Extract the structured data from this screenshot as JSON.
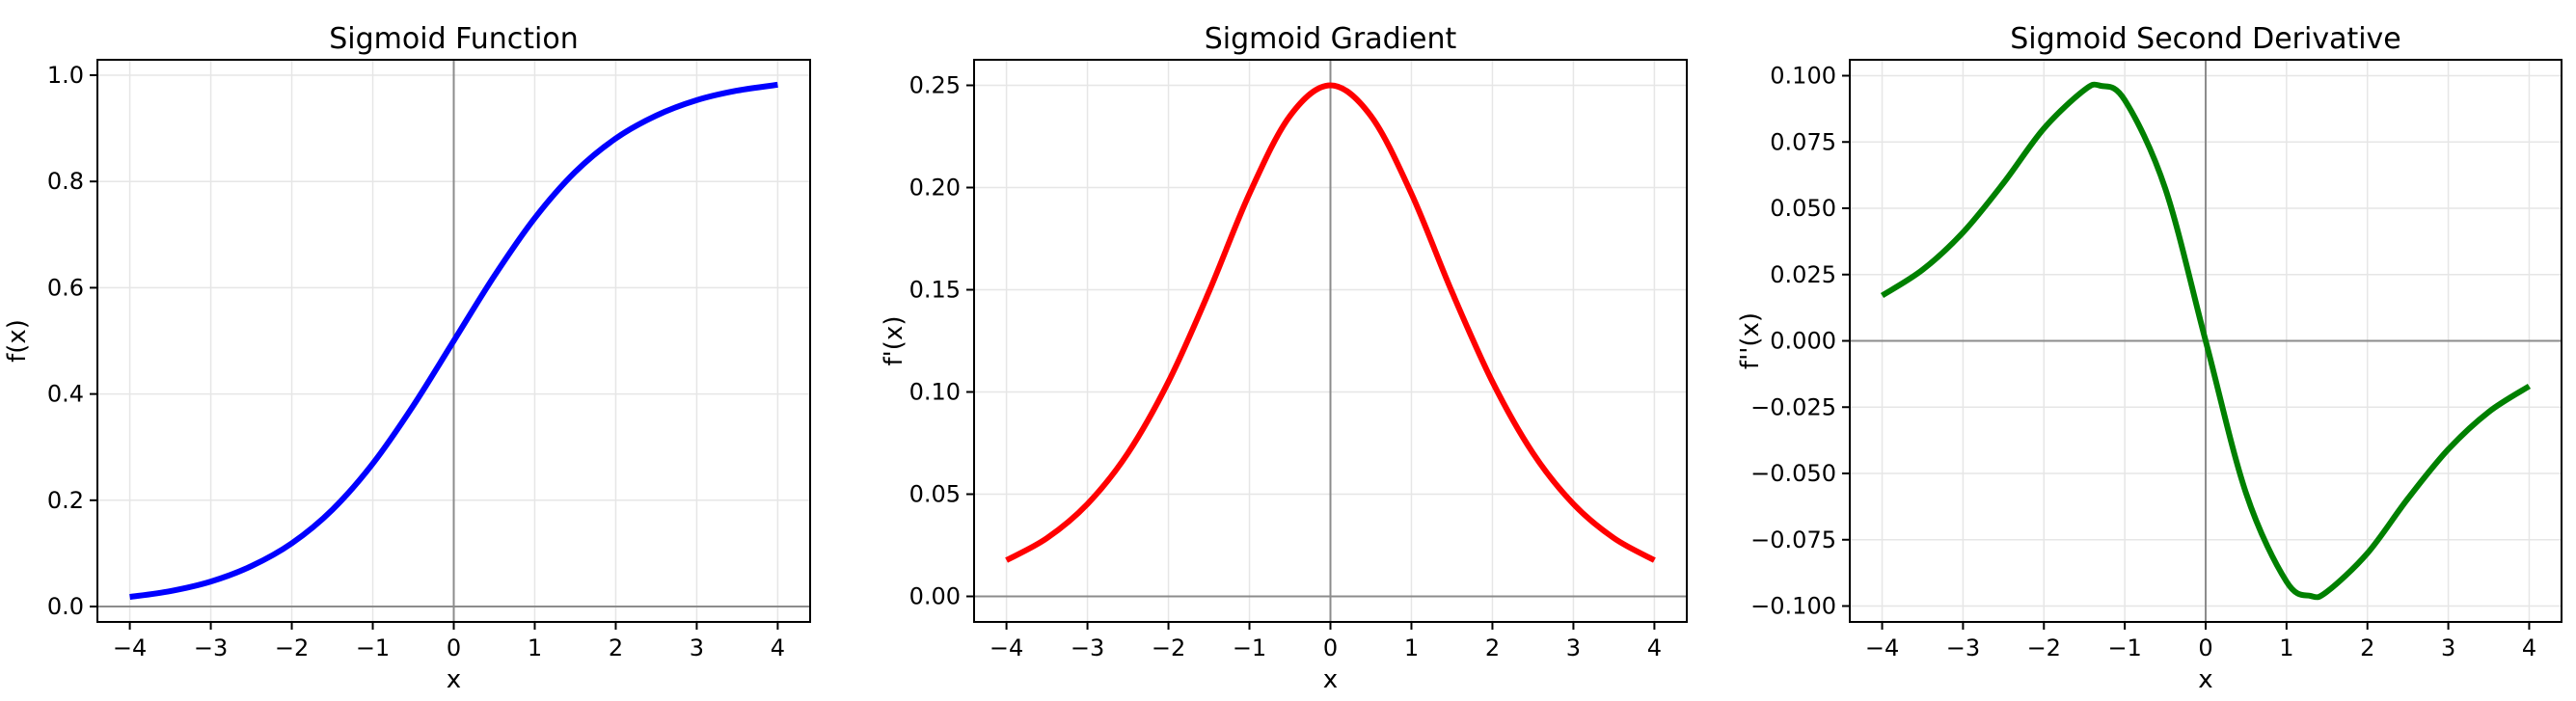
{
  "chart_data": [
    {
      "type": "line",
      "title": "Sigmoid Function",
      "xlabel": "x",
      "ylabel": "f(x)",
      "xlim": [
        -4.4,
        4.4
      ],
      "ylim": [
        -0.029,
        1.029
      ],
      "xticks": [
        -4,
        -3,
        -2,
        -1,
        0,
        1,
        2,
        3,
        4
      ],
      "xtick_labels": [
        "−4",
        "−3",
        "−2",
        "−1",
        "0",
        "1",
        "2",
        "3",
        "4"
      ],
      "yticks": [
        0.0,
        0.2,
        0.4,
        0.6,
        0.8,
        1.0
      ],
      "ytick_labels": [
        "0.0",
        "0.2",
        "0.4",
        "0.6",
        "0.8",
        "1.0"
      ],
      "grid": true,
      "reference_lines": {
        "x": 0,
        "y": 0
      },
      "color": "#0000ff",
      "series": [
        {
          "x": [
            -4,
            -3.5,
            -3,
            -2.5,
            -2,
            -1.5,
            -1,
            -0.5,
            0,
            0.5,
            1,
            1.5,
            2,
            2.5,
            3,
            3.5,
            4
          ],
          "y": [
            0.018,
            0.029,
            0.047,
            0.076,
            0.119,
            0.182,
            0.269,
            0.378,
            0.5,
            0.622,
            0.731,
            0.818,
            0.881,
            0.924,
            0.953,
            0.971,
            0.982
          ]
        }
      ]
    },
    {
      "type": "line",
      "title": "Sigmoid Gradient",
      "xlabel": "x",
      "ylabel": "f'(x)",
      "xlim": [
        -4.4,
        4.4
      ],
      "ylim": [
        -0.0125,
        0.2625
      ],
      "xticks": [
        -4,
        -3,
        -2,
        -1,
        0,
        1,
        2,
        3,
        4
      ],
      "xtick_labels": [
        "−4",
        "−3",
        "−2",
        "−1",
        "0",
        "1",
        "2",
        "3",
        "4"
      ],
      "yticks": [
        0.0,
        0.05,
        0.1,
        0.15,
        0.2,
        0.25
      ],
      "ytick_labels": [
        "0.00",
        "0.05",
        "0.10",
        "0.15",
        "0.20",
        "0.25"
      ],
      "grid": true,
      "reference_lines": {
        "x": 0,
        "y": 0
      },
      "color": "#ff0000",
      "series": [
        {
          "x": [
            -4,
            -3.5,
            -3,
            -2.5,
            -2,
            -1.5,
            -1,
            -0.5,
            0,
            0.5,
            1,
            1.5,
            2,
            2.5,
            3,
            3.5,
            4
          ],
          "y": [
            0.0177,
            0.0285,
            0.0452,
            0.0701,
            0.105,
            0.149,
            0.197,
            0.235,
            0.25,
            0.235,
            0.197,
            0.149,
            0.105,
            0.0701,
            0.0452,
            0.0285,
            0.0177
          ]
        }
      ]
    },
    {
      "type": "line",
      "title": "Sigmoid Second Derivative",
      "xlabel": "x",
      "ylabel": "f''(x)",
      "xlim": [
        -4.4,
        4.4
      ],
      "ylim": [
        -0.106,
        0.106
      ],
      "xticks": [
        -4,
        -3,
        -2,
        -1,
        0,
        1,
        2,
        3,
        4
      ],
      "xtick_labels": [
        "−4",
        "−3",
        "−2",
        "−1",
        "0",
        "1",
        "2",
        "3",
        "4"
      ],
      "yticks": [
        -0.1,
        -0.075,
        -0.05,
        -0.025,
        0.0,
        0.025,
        0.05,
        0.075,
        0.1
      ],
      "ytick_labels": [
        "−0.100",
        "−0.075",
        "−0.050",
        "−0.025",
        "0.000",
        "0.025",
        "0.050",
        "0.075",
        "0.100"
      ],
      "grid": true,
      "reference_lines": {
        "x": 0,
        "y": 0
      },
      "color": "#008000",
      "series": [
        {
          "x": [
            -4,
            -3.5,
            -3,
            -2.5,
            -2,
            -1.5,
            -1.3,
            -1,
            -0.5,
            0,
            0.5,
            1,
            1.3,
            1.5,
            2,
            2.5,
            3,
            3.5,
            4
          ],
          "y": [
            0.0171,
            0.0268,
            0.0409,
            0.0595,
            0.0801,
            0.0946,
            0.0962,
            0.0908,
            0.0575,
            0.0,
            -0.0575,
            -0.0908,
            -0.0962,
            -0.0946,
            -0.0801,
            -0.0595,
            -0.0409,
            -0.0268,
            -0.0171
          ]
        }
      ]
    }
  ]
}
